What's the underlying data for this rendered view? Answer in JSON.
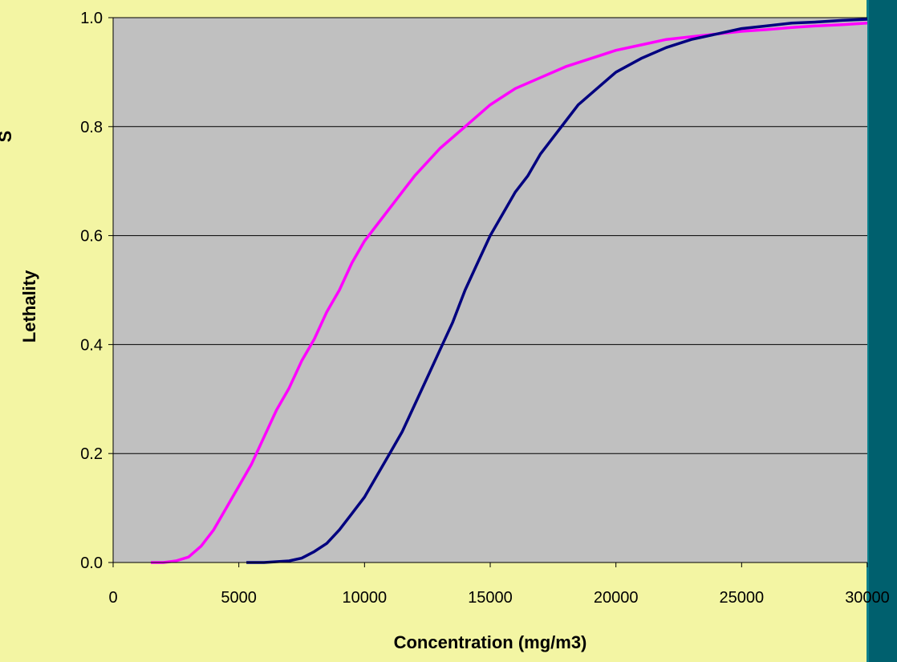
{
  "chart_data": {
    "type": "line",
    "xlabel": "Concentration (mg/m3)",
    "ylabel": "Lethality",
    "ylabel_clipped_glyph": "S",
    "xlim": [
      0,
      30000
    ],
    "ylim": [
      0,
      1.0
    ],
    "x_ticks": [
      "0",
      "5000",
      "10000",
      "15000",
      "20000",
      "25000",
      "30000"
    ],
    "y_ticks": [
      "0.0",
      "0.2",
      "0.4",
      "0.6",
      "0.8",
      "1.0"
    ],
    "grid": "horizontal",
    "plot_background": "#c0c0c0",
    "series": [
      {
        "color": "#ff00ff",
        "x": [
          1500,
          2000,
          2500,
          3000,
          3500,
          4000,
          4500,
          5000,
          5500,
          6000,
          6500,
          7000,
          7500,
          8000,
          8500,
          9000,
          9500,
          10000,
          10500,
          11000,
          12000,
          13000,
          14000,
          15000,
          16000,
          17000,
          18000,
          19000,
          20000,
          21000,
          22000,
          23000,
          24000,
          25000,
          26000,
          27000,
          28000,
          29000,
          30000
        ],
        "y": [
          0.0,
          0.0,
          0.003,
          0.01,
          0.03,
          0.06,
          0.1,
          0.14,
          0.18,
          0.23,
          0.28,
          0.32,
          0.37,
          0.41,
          0.46,
          0.5,
          0.55,
          0.59,
          0.62,
          0.65,
          0.71,
          0.76,
          0.8,
          0.84,
          0.87,
          0.89,
          0.91,
          0.925,
          0.94,
          0.95,
          0.96,
          0.965,
          0.97,
          0.975,
          0.978,
          0.982,
          0.985,
          0.987,
          0.99
        ]
      },
      {
        "color": "#00007f",
        "x": [
          5300,
          6000,
          7000,
          7500,
          8000,
          8500,
          9000,
          9500,
          10000,
          10500,
          11000,
          11500,
          12000,
          12500,
          13000,
          13500,
          14000,
          14500,
          15000,
          15500,
          16000,
          16500,
          17000,
          17500,
          18000,
          18500,
          19000,
          20000,
          21000,
          22000,
          23000,
          24000,
          25000,
          26000,
          27000,
          28000,
          29000,
          30000
        ],
        "y": [
          0.0,
          0.0,
          0.003,
          0.008,
          0.02,
          0.035,
          0.06,
          0.09,
          0.12,
          0.16,
          0.2,
          0.24,
          0.29,
          0.34,
          0.39,
          0.44,
          0.5,
          0.55,
          0.6,
          0.64,
          0.68,
          0.71,
          0.75,
          0.78,
          0.81,
          0.84,
          0.86,
          0.9,
          0.925,
          0.945,
          0.96,
          0.97,
          0.98,
          0.985,
          0.99,
          0.992,
          0.995,
          0.997
        ]
      }
    ]
  }
}
